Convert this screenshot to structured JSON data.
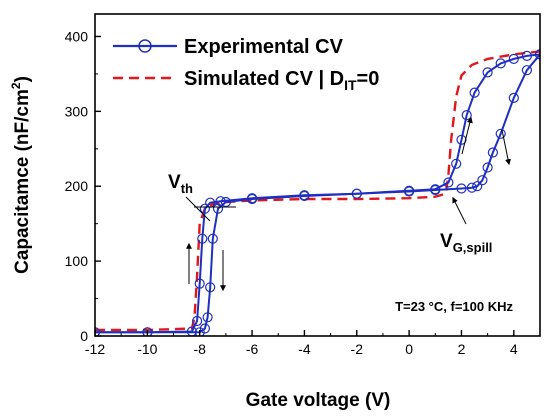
{
  "chart_data": {
    "type": "line",
    "title": "",
    "xlabel": "Gate voltage  (V)",
    "ylabel_main": "Capacitamce  (nF/cm",
    "ylabel_sup": "2",
    "ylabel_tail": ")",
    "xlim": [
      -12,
      5
    ],
    "ylim": [
      0,
      430
    ],
    "xticks": [
      -12,
      -10,
      -8,
      -6,
      -4,
      -2,
      0,
      2,
      4
    ],
    "yticks": [
      0,
      100,
      200,
      300,
      400
    ],
    "grid": false,
    "legend_position": "top-left",
    "series": [
      {
        "name": "Experimental CV",
        "style": "solid-line-circle-markers",
        "color": "#1f2fbf",
        "branches": [
          {
            "direction": "forward",
            "x": [
              -12,
              -10,
              -8.3,
              -8.1,
              -8.0,
              -7.9,
              -7.8,
              -7.6,
              -7.2,
              -6,
              -4,
              -2,
              0,
              1.0,
              1.5,
              1.8,
              2.0,
              2.2,
              2.5,
              3.0,
              3.5,
              4.0,
              4.5,
              5.0
            ],
            "y": [
              5,
              5,
              6,
              20,
              70,
              130,
              170,
              178,
              180,
              184,
              188,
              190,
              194,
              196,
              205,
              230,
              262,
              295,
              325,
              352,
              364,
              370,
              374,
              376
            ]
          },
          {
            "direction": "reverse",
            "x": [
              5.0,
              4.5,
              4.0,
              3.5,
              3.2,
              3.0,
              2.8,
              2.6,
              2.4,
              2.0,
              1.0,
              0,
              -2,
              -4,
              -6,
              -7.0,
              -7.3,
              -7.5,
              -7.6,
              -7.7,
              -7.8,
              -8.0,
              -10,
              -12
            ],
            "y": [
              376,
              355,
              318,
              270,
              245,
              225,
              208,
              200,
              198,
              197,
              195,
              193,
              190,
              187,
              183,
              179,
              170,
              130,
              65,
              25,
              10,
              5,
              5,
              5
            ]
          }
        ]
      },
      {
        "name": "Simulated CV | D",
        "name_sub": "IT",
        "name_tail": "=0",
        "style": "dashed",
        "color": "#e0181b",
        "x": [
          -12,
          -10,
          -8.3,
          -8.2,
          -8.1,
          -8.0,
          -7.8,
          -7.5,
          -7,
          -6,
          -4,
          -2,
          0,
          1.0,
          1.4,
          1.5,
          1.6,
          1.8,
          2.0,
          2.4,
          3.0,
          4.0,
          5.0
        ],
        "y": [
          8,
          8,
          10,
          25,
          80,
          150,
          170,
          176,
          179,
          181,
          183,
          183,
          184,
          186,
          190,
          215,
          260,
          320,
          348,
          362,
          370,
          376,
          380
        ]
      }
    ],
    "annotations": {
      "vth_main": "V",
      "vth_sub": "th",
      "vg_main": "V",
      "vg_sub": "G,spill",
      "conditions": "T=23 °C, f=100 KHz"
    }
  }
}
